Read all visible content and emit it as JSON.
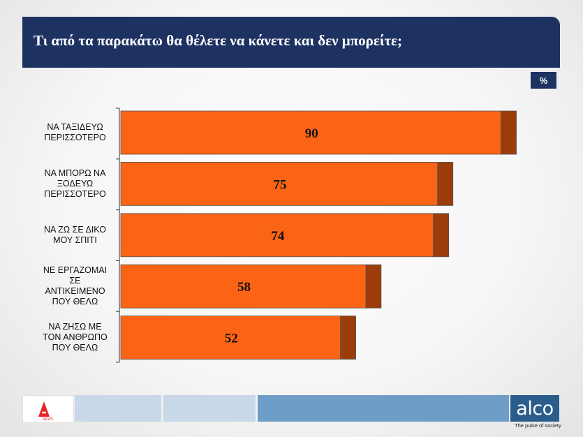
{
  "header": {
    "title": "Τι από τα παρακάτω θα θέλετε να κάνετε και δεν μπορείτε;"
  },
  "unit_label": "%",
  "chart_data": {
    "type": "bar",
    "orientation": "horizontal",
    "title": "Τι από τα παρακάτω θα θέλετε να κάνετε και δεν μπορείτε;",
    "categories": [
      [
        "ΝΑ ΤΑΞΙΔΕΥΩ",
        "ΠΕΡΙΣΣΟΤΕΡΟ"
      ],
      [
        "ΝΑ ΜΠΟΡΩ ΝΑ",
        "ΞΟΔΕΥΩ",
        "ΠΕΡΙΣΣΟΤΕΡΟ"
      ],
      [
        "ΝΑ ΖΩ ΣΕ ΔΙΚΟ",
        "ΜΟΥ ΣΠΙΤΙ"
      ],
      [
        "ΝΕ ΕΡΓΑΖΟΜΑΙ",
        "ΣΕ",
        "ΑΝΤΙΚΕΙΜΕΝΟ",
        "ΠΟΥ ΘΕΛΩ"
      ],
      [
        "ΝΑ ΖΗΣΩ ΜΕ",
        "ΤΟΝ ΑΝΘΡΩΠΟ",
        "ΠΟΥ ΘΕΛΩ"
      ]
    ],
    "values": [
      90,
      75,
      74,
      58,
      52
    ],
    "xlim": [
      0,
      100
    ],
    "unit": "%",
    "colors": {
      "bar": "#fa6414",
      "bar_end": "#9c3c0a",
      "outline": "#555555"
    }
  },
  "footer": {
    "logo_left": "NEWS",
    "brand": "alco",
    "tagline": "The pulse of society",
    "colors": [
      "#c8d8e8",
      "#c8d8e8",
      "#b4cce0",
      "#6e9ec8"
    ]
  }
}
